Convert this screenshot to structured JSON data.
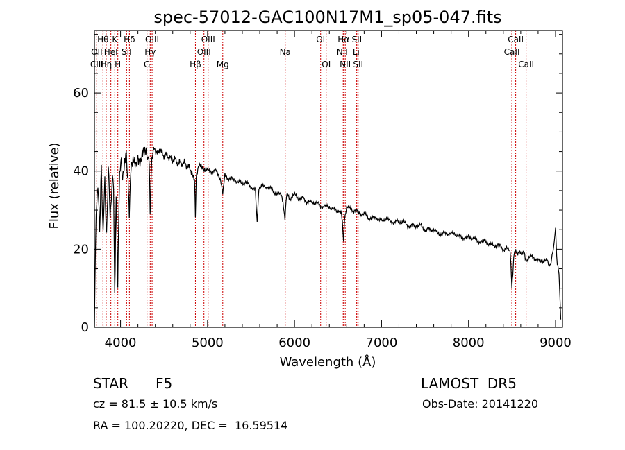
{
  "chart_data": {
    "type": "line",
    "title": "spec-57012-GAC100N17M1_sp05-047.fits",
    "xlabel": "Wavelength (Å)",
    "ylabel": "Flux (relative)",
    "xlim": [
      3700,
      9080
    ],
    "ylim": [
      0,
      76
    ],
    "xticks": [
      4000,
      5000,
      6000,
      7000,
      8000,
      9000
    ],
    "yticks": [
      0,
      20,
      40,
      60
    ],
    "grid": false,
    "series": [
      {
        "x": [
          3700,
          3720,
          3740,
          3760,
          3780,
          3800,
          3820,
          3840,
          3860,
          3880,
          3900,
          3920,
          3933,
          3950,
          3968,
          3990,
          4010,
          4030,
          4060,
          4080,
          4101,
          4120,
          4150,
          4180,
          4200,
          4230,
          4260,
          4290,
          4310,
          4330,
          4340,
          4360,
          4380,
          4400,
          4430,
          4460,
          4500,
          4540,
          4580,
          4620,
          4660,
          4700,
          4740,
          4780,
          4820,
          4850,
          4861,
          4870,
          4900,
          4950,
          5000,
          5050,
          5100,
          5150,
          5175,
          5200,
          5250,
          5300,
          5350,
          5400,
          5450,
          5500,
          5550,
          5570,
          5590,
          5600,
          5650,
          5700,
          5750,
          5800,
          5850,
          5890,
          5896,
          5910,
          5950,
          6000,
          6050,
          6100,
          6150,
          6200,
          6250,
          6300,
          6350,
          6400,
          6450,
          6500,
          6540,
          6550,
          6563,
          6575,
          6600,
          6650,
          6700,
          6750,
          6800,
          6850,
          6900,
          6950,
          7000,
          7050,
          7100,
          7150,
          7200,
          7250,
          7300,
          7350,
          7400,
          7450,
          7500,
          7550,
          7600,
          7650,
          7700,
          7750,
          7800,
          7850,
          7900,
          7950,
          8000,
          8050,
          8100,
          8150,
          8200,
          8250,
          8300,
          8350,
          8400,
          8450,
          8480,
          8498,
          8520,
          8542,
          8560,
          8600,
          8640,
          8662,
          8700,
          8750,
          8800,
          8850,
          8900,
          8940,
          8960,
          8980,
          9000,
          9020,
          9040,
          9060
        ],
        "y": [
          0,
          30,
          36,
          26,
          40,
          24,
          38,
          22,
          42,
          28,
          36,
          38,
          8,
          35,
          12,
          40,
          42,
          38,
          44,
          40,
          30,
          42,
          44,
          43,
          42,
          41,
          44,
          44,
          44,
          42,
          30,
          43,
          46,
          45,
          45,
          45,
          44,
          44,
          43,
          43,
          42,
          42,
          42,
          41,
          40,
          38,
          28,
          38,
          41,
          41,
          40,
          40,
          40,
          38,
          34,
          39,
          38,
          38,
          37,
          37,
          37,
          36,
          35,
          27,
          35,
          36,
          36,
          36,
          35,
          34,
          34,
          28,
          30,
          34,
          33,
          34,
          33,
          33,
          32,
          32,
          32,
          31,
          31,
          31,
          30,
          30,
          29,
          27,
          22,
          28,
          31,
          30,
          30,
          29,
          29,
          28,
          28,
          28,
          27,
          28,
          27,
          27,
          27,
          27,
          26,
          26,
          26,
          26,
          25,
          25,
          25,
          24,
          24,
          24,
          24,
          24,
          23,
          23,
          23,
          23,
          22,
          22,
          22,
          21,
          21,
          21,
          20,
          20,
          19,
          10,
          18,
          20,
          19,
          19,
          19,
          17,
          18,
          18,
          17,
          17,
          17,
          16,
          18,
          21,
          25,
          16,
          14,
          2
        ]
      }
    ],
    "lines": [
      {
        "label": "Hθ",
        "wave": 3798,
        "row": 0
      },
      {
        "label": "K",
        "wave": 3934,
        "row": 0
      },
      {
        "label": "Hδ",
        "wave": 4102,
        "row": 0
      },
      {
        "label": "OIII",
        "wave": 4363,
        "row": 0
      },
      {
        "label": "OIII",
        "wave": 5007,
        "row": 0
      },
      {
        "label": "OI",
        "wave": 6300,
        "row": 0
      },
      {
        "label": "Hα",
        "wave": 6563,
        "row": 0
      },
      {
        "label": "SII",
        "wave": 6716,
        "row": 0
      },
      {
        "label": "CaII",
        "wave": 8542,
        "row": 0
      },
      {
        "label": "OII",
        "wave": 3727,
        "row": 1
      },
      {
        "label": "HeI",
        "wave": 3889,
        "row": 1
      },
      {
        "label": "SII",
        "wave": 4070,
        "row": 1
      },
      {
        "label": "Hγ",
        "wave": 4341,
        "row": 1
      },
      {
        "label": "OIII",
        "wave": 4959,
        "row": 1
      },
      {
        "label": "Na",
        "wave": 5893,
        "row": 1
      },
      {
        "label": "NII",
        "wave": 6548,
        "row": 1
      },
      {
        "label": "Li",
        "wave": 6708,
        "row": 1
      },
      {
        "label": "CaII",
        "wave": 8498,
        "row": 1
      },
      {
        "label": "CIII",
        "wave": 3727,
        "row": 2
      },
      {
        "label": "Hη",
        "wave": 3835,
        "row": 2
      },
      {
        "label": "H",
        "wave": 3969,
        "row": 2
      },
      {
        "label": "G",
        "wave": 4304,
        "row": 2
      },
      {
        "label": "Hβ",
        "wave": 4861,
        "row": 2
      },
      {
        "label": "Mg",
        "wave": 5175,
        "row": 2
      },
      {
        "label": "OI",
        "wave": 6364,
        "row": 2
      },
      {
        "label": "NII",
        "wave": 6583,
        "row": 2
      },
      {
        "label": "SII",
        "wave": 6731,
        "row": 2
      },
      {
        "label": "CaII",
        "wave": 8662,
        "row": 2
      }
    ]
  },
  "info": {
    "object_class": "STAR",
    "subclass": "F5",
    "survey": "LAMOST  DR5",
    "redshift": "cz = 81.5 ± 10.5 km/s",
    "obs_date": "Obs-Date: 20141220",
    "coords": "RA = 100.20220, DEC =  16.59514"
  }
}
